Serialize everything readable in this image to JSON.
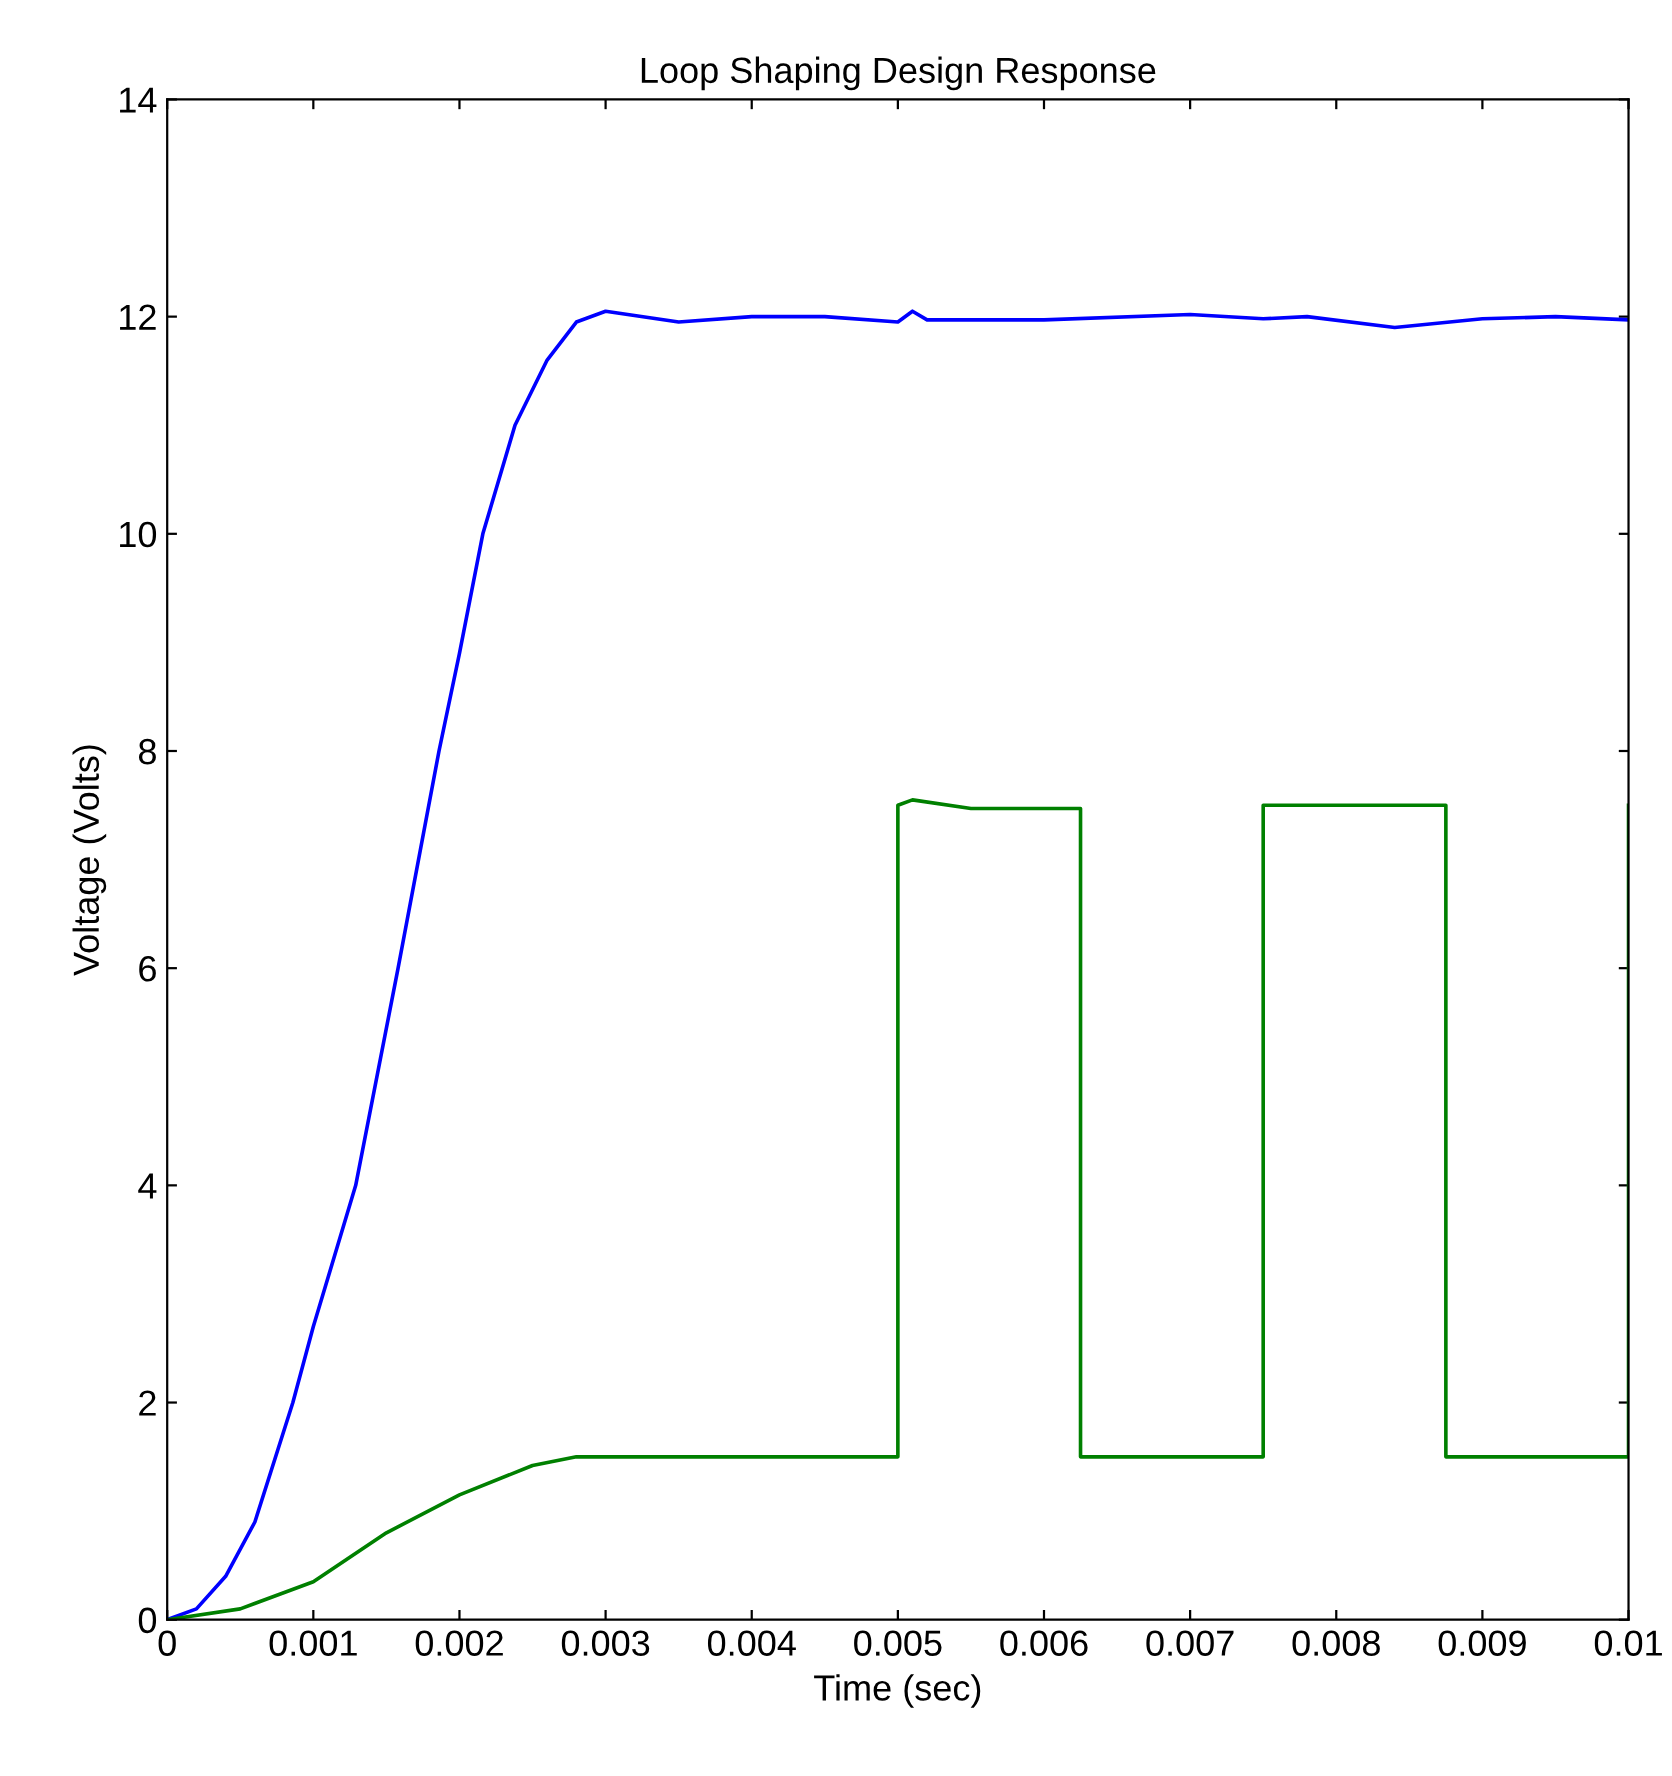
{
  "chart_data": {
    "type": "line",
    "title": "Loop Shaping Design Response",
    "xlabel": "Time (sec)",
    "ylabel": "Voltage (Volts)",
    "xlim": [
      0,
      0.01
    ],
    "ylim": [
      0,
      14
    ],
    "xticks": [
      0,
      0.001,
      0.002,
      0.003,
      0.004,
      0.005,
      0.006,
      0.007,
      0.008,
      0.009,
      0.01
    ],
    "yticks": [
      0,
      2,
      4,
      6,
      8,
      10,
      12,
      14
    ],
    "grid": false,
    "marker": "none",
    "line_style": "solid",
    "series": [
      {
        "color": "#0000ff",
        "x": [
          0,
          0.0002,
          0.0004,
          0.0006,
          0.00086,
          0.001,
          0.00129,
          0.00158,
          0.00186,
          0.002,
          0.00216,
          0.00238,
          0.0026,
          0.0028,
          0.003,
          0.0035,
          0.004,
          0.0045,
          0.005,
          0.0051,
          0.0052,
          0.006,
          0.007,
          0.0075,
          0.0078,
          0.0084,
          0.009,
          0.0095,
          0.01
        ],
        "values": [
          0,
          0.1,
          0.4,
          0.9,
          2,
          2.7,
          4,
          6,
          8,
          8.9,
          10,
          11,
          11.6,
          11.95,
          12.05,
          11.95,
          12,
          12,
          11.95,
          12.05,
          11.97,
          11.97,
          12.02,
          11.98,
          12,
          11.9,
          11.98,
          12,
          11.97
        ]
      },
      {
        "color": "#008000",
        "x": [
          0,
          0.0005,
          0.001,
          0.0015,
          0.002,
          0.0025,
          0.0028,
          0.005,
          0.005,
          0.0051,
          0.0055,
          0.00625,
          0.00625,
          0.0075,
          0.0075,
          0.008,
          0.00875,
          0.00875,
          0.01,
          0.01
        ],
        "values": [
          0,
          0.1,
          0.35,
          0.8,
          1.15,
          1.42,
          1.5,
          1.5,
          7.5,
          7.55,
          7.47,
          7.47,
          1.5,
          1.5,
          7.5,
          7.5,
          7.5,
          1.5,
          1.5,
          7.5
        ]
      }
    ]
  }
}
